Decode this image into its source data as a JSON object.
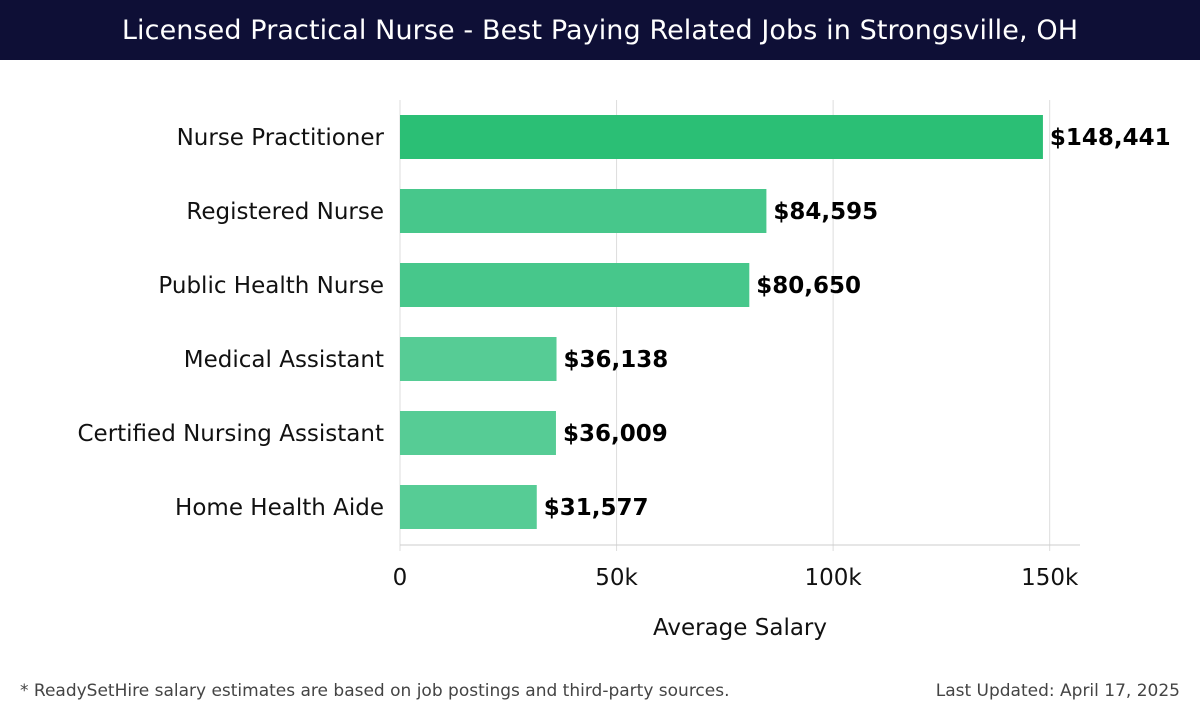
{
  "title": "Licensed Practical Nurse - Best Paying Related Jobs in Strongsville, OH",
  "footnote": "* ReadySetHire salary estimates are based on job postings and third-party sources.",
  "last_updated": "Last Updated: April 17, 2025",
  "colors": {
    "header_bg": "#0e0f36",
    "bar_top": "#2bbf75",
    "bar_mid": "#47c78b",
    "bar_low": "#56cc95",
    "grid": "#dddddd"
  },
  "chart_data": {
    "type": "bar",
    "orientation": "horizontal",
    "title": "Licensed Practical Nurse - Best Paying Related Jobs in Strongsville, OH",
    "xlabel": "Average Salary",
    "ylabel": "",
    "xlim": [
      0,
      157000
    ],
    "ticks": [
      0,
      50000,
      100000,
      150000
    ],
    "tick_labels": [
      "0",
      "50k",
      "100k",
      "150k"
    ],
    "grid": true,
    "categories": [
      "Nurse Practitioner",
      "Registered Nurse",
      "Public Health Nurse",
      "Medical Assistant",
      "Certified Nursing Assistant",
      "Home Health Aide"
    ],
    "values": [
      148441,
      84595,
      80650,
      36138,
      36009,
      31577
    ],
    "value_labels": [
      "$148,441",
      "$84,595",
      "$80,650",
      "$36,138",
      "$36,009",
      "$31,577"
    ]
  }
}
